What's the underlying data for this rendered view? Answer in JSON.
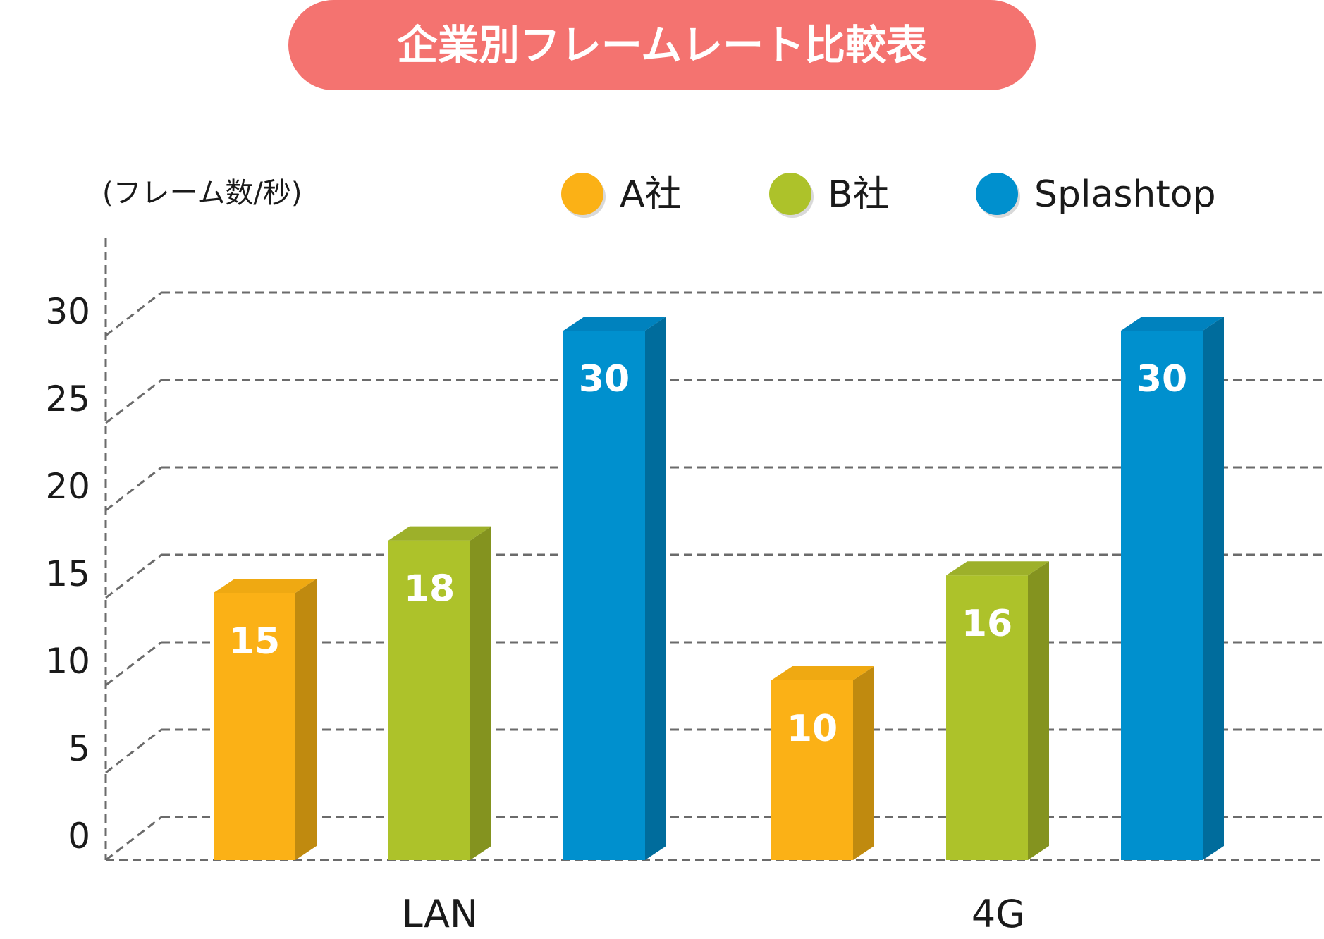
{
  "chart_data": {
    "type": "bar",
    "title": "企業別フレームレート比較表",
    "ylabel": "(フレーム数/秒)",
    "xlabel": "",
    "ylim": [
      0,
      32.5
    ],
    "yticks": [
      0,
      5,
      10,
      15,
      20,
      25,
      30
    ],
    "grid": true,
    "legend_position": "top",
    "categories": [
      "LAN",
      "4G"
    ],
    "series": [
      {
        "name": "A社",
        "values": [
          15,
          10
        ],
        "color": "#FBB116",
        "side_color": "#C08A0F",
        "top_color": "#EFA912"
      },
      {
        "name": "B社",
        "values": [
          18,
          16
        ],
        "color": "#ADC22A",
        "side_color": "#84931F",
        "top_color": "#9DB02A"
      },
      {
        "name": "Splashtop",
        "values": [
          30,
          30
        ],
        "color": "#0090CE",
        "side_color": "#006C9C",
        "top_color": "#0082BE"
      }
    ],
    "colors": {
      "title_bg": "#F47370",
      "grid": "#6B6B6B",
      "text": "#1A1A1A"
    }
  }
}
